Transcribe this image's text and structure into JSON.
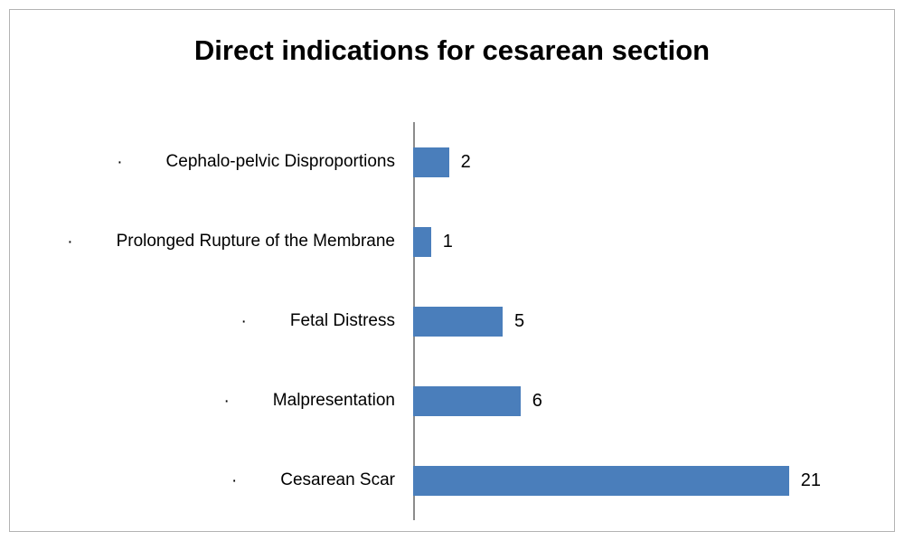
{
  "chart_data": {
    "type": "bar",
    "orientation": "horizontal",
    "title": "Direct indications for cesarean section",
    "categories": [
      "Cephalo-pelvic Disproportions",
      "Prolonged Rupture of the Membrane",
      "Fetal Distress",
      "Malpresentation",
      "Cesarean Scar"
    ],
    "values": [
      2,
      1,
      5,
      6,
      21
    ],
    "data_labels": [
      "2",
      "1",
      "5",
      "6",
      "21"
    ],
    "bullet": "·",
    "xlim": [
      0,
      26.8
    ],
    "grid": false,
    "legend": false,
    "colors": {
      "bar": "#4a7ebb",
      "axis": "#8c8c8c",
      "frame": "#b3b3b3",
      "text": "#000000",
      "background": "#ffffff"
    }
  }
}
